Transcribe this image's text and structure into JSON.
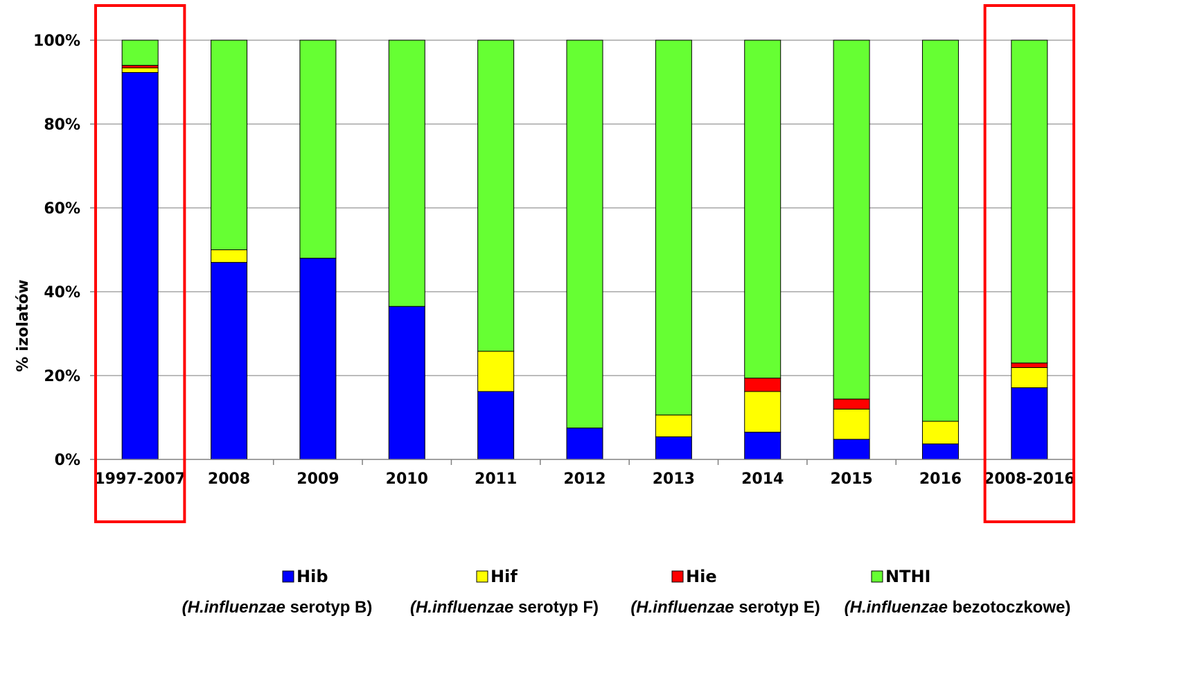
{
  "chart_data": {
    "type": "bar",
    "stacked": "percent",
    "ylabel": "% izolatów",
    "xlabel": "",
    "title": "",
    "ylim": [
      0,
      100
    ],
    "yticks": [
      "0%",
      "20%",
      "40%",
      "60%",
      "80%",
      "100%"
    ],
    "grid": true,
    "legend_position": "bottom",
    "categories": [
      "1997-2007",
      "2008",
      "2009",
      "2010",
      "2011",
      "2012",
      "2013",
      "2014",
      "2015",
      "2016",
      "2008-2016"
    ],
    "highlighted_categories": [
      "1997-2007",
      "2008-2016"
    ],
    "highlight_color": "#ff0000",
    "series": [
      {
        "name": "Hib",
        "color": "#0000ff",
        "description": {
          "italic": "(H.influenzae",
          "rest": " serotyp B)"
        },
        "values": [
          92.3,
          47.0,
          48.0,
          36.5,
          16.2,
          7.5,
          5.4,
          6.5,
          4.8,
          3.7,
          17.1
        ]
      },
      {
        "name": "Hif",
        "color": "#ffff00",
        "description": {
          "italic": "(H.influenzae",
          "rest": " serotyp F)"
        },
        "values": [
          1.1,
          3.0,
          0.0,
          0.0,
          9.6,
          0.0,
          5.2,
          9.7,
          7.2,
          5.4,
          4.8
        ]
      },
      {
        "name": "Hie",
        "color": "#ff0000",
        "description": {
          "italic": "(H.influenzae",
          "rest": " serotyp E)"
        },
        "values": [
          0.6,
          0.0,
          0.0,
          0.0,
          0.0,
          0.0,
          0.0,
          3.2,
          2.4,
          0.0,
          1.1
        ]
      },
      {
        "name": "NTHI",
        "color": "#66ff33",
        "description": {
          "italic": "(H.influenzae",
          "rest": " bezotoczkowe)"
        },
        "values": [
          6.0,
          50.0,
          52.0,
          63.5,
          74.2,
          92.5,
          89.4,
          80.6,
          85.6,
          90.9,
          77.0
        ]
      }
    ]
  }
}
